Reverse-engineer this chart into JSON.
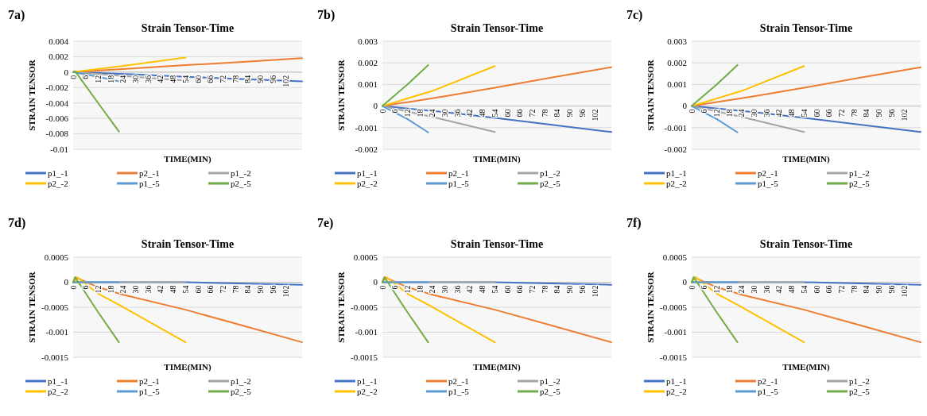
{
  "chart_data": [
    {
      "type": "line",
      "title": "Strain Tensor-Time",
      "xlabel": "TIME(MIN)",
      "ylabel": "STRAIN TENSOR",
      "annotations": [
        "7a)"
      ],
      "xlim": [
        0,
        110
      ],
      "xticks": [
        0,
        6,
        12,
        18,
        24,
        30,
        36,
        42,
        48,
        54,
        60,
        66,
        72,
        78,
        84,
        90,
        96,
        102
      ],
      "ylim": [
        -0.01,
        0.004
      ],
      "yticks": [
        -0.01,
        -0.008,
        -0.006,
        -0.004,
        -0.002,
        0,
        0.002,
        0.004
      ],
      "grid": "y",
      "legend": "bottom",
      "series": [
        {
          "name": "p1_-1",
          "color": "#4472c4",
          "x": [
            0,
            30,
            54,
            80,
            110
          ],
          "values": [
            0,
            -0.0003,
            -0.0006,
            -0.0009,
            -0.0012
          ]
        },
        {
          "name": "p2_-1",
          "color": "#ed7d31",
          "x": [
            0,
            30,
            54,
            80,
            110
          ],
          "values": [
            0,
            0.0005,
            0.0009,
            0.0013,
            0.0018
          ]
        },
        {
          "name": "p1_-2",
          "color": "#a5a5a5",
          "x": [
            0,
            24,
            54
          ],
          "values": [
            0,
            -0.0005,
            -0.0011
          ]
        },
        {
          "name": "p2_-2",
          "color": "#ffc000",
          "x": [
            0,
            24,
            54
          ],
          "values": [
            0,
            0.0008,
            0.0019
          ]
        },
        {
          "name": "p1_-5",
          "color": "#5b9bd5",
          "x": [
            0,
            12,
            22
          ],
          "values": [
            0,
            -0.0006,
            -0.0012
          ]
        },
        {
          "name": "p2_-5",
          "color": "#70ad47",
          "x": [
            0,
            1,
            12,
            22
          ],
          "values": [
            0,
            0.0001,
            -0.004,
            -0.0077
          ]
        }
      ]
    },
    {
      "type": "line",
      "title": "Strain Tensor-Time",
      "xlabel": "TIME(MIN)",
      "ylabel": "STRAIN TENSOR",
      "annotations": [
        "7b)"
      ],
      "xlim": [
        0,
        110
      ],
      "xticks": [
        0,
        6,
        12,
        18,
        24,
        30,
        36,
        42,
        48,
        54,
        60,
        66,
        72,
        78,
        84,
        90,
        96,
        102
      ],
      "ylim": [
        -0.002,
        0.003
      ],
      "yticks": [
        -0.002,
        -0.001,
        0,
        0.001,
        0.002,
        0.003
      ],
      "grid": "y",
      "legend": "bottom",
      "series": [
        {
          "name": "p1_-1",
          "color": "#4472c4",
          "x": [
            0,
            30,
            54,
            80,
            110
          ],
          "values": [
            0,
            -0.00028,
            -0.00055,
            -0.00085,
            -0.0012
          ]
        },
        {
          "name": "p2_-1",
          "color": "#ed7d31",
          "x": [
            0,
            30,
            54,
            80,
            110
          ],
          "values": [
            0,
            0.00045,
            0.00085,
            0.0013,
            0.0018
          ]
        },
        {
          "name": "p1_-2",
          "color": "#a5a5a5",
          "x": [
            0,
            24,
            54
          ],
          "values": [
            0,
            -0.0005,
            -0.0012
          ]
        },
        {
          "name": "p2_-2",
          "color": "#ffc000",
          "x": [
            0,
            24,
            54
          ],
          "values": [
            0,
            0.0007,
            0.00185
          ]
        },
        {
          "name": "p1_-5",
          "color": "#5b9bd5",
          "x": [
            0,
            12,
            22
          ],
          "values": [
            0,
            -0.0006,
            -0.00122
          ]
        },
        {
          "name": "p2_-5",
          "color": "#70ad47",
          "x": [
            0,
            12,
            22
          ],
          "values": [
            0,
            0.001,
            0.0019
          ]
        }
      ]
    },
    {
      "type": "line",
      "title": "Strain Tensor-Time",
      "xlabel": "TIME(MIN)",
      "ylabel": "STRAIN TENSOR",
      "annotations": [
        "7c)"
      ],
      "xlim": [
        0,
        110
      ],
      "xticks": [
        0,
        6,
        12,
        18,
        24,
        30,
        36,
        42,
        48,
        54,
        60,
        66,
        72,
        78,
        84,
        90,
        96,
        102
      ],
      "ylim": [
        -0.002,
        0.003
      ],
      "yticks": [
        -0.002,
        -0.001,
        0,
        0.001,
        0.002,
        0.003
      ],
      "grid": "y",
      "legend": "bottom",
      "series": [
        {
          "name": "p1_-1",
          "color": "#4472c4",
          "x": [
            0,
            30,
            54,
            80,
            110
          ],
          "values": [
            0,
            -0.00028,
            -0.00055,
            -0.00085,
            -0.0012
          ]
        },
        {
          "name": "p2_-1",
          "color": "#ed7d31",
          "x": [
            0,
            30,
            54,
            80,
            110
          ],
          "values": [
            0,
            0.00045,
            0.00085,
            0.0013,
            0.0018
          ]
        },
        {
          "name": "p1_-2",
          "color": "#a5a5a5",
          "x": [
            0,
            24,
            54
          ],
          "values": [
            0,
            -0.0005,
            -0.0012
          ]
        },
        {
          "name": "p2_-2",
          "color": "#ffc000",
          "x": [
            0,
            24,
            54
          ],
          "values": [
            0,
            0.0007,
            0.00185
          ]
        },
        {
          "name": "p1_-5",
          "color": "#5b9bd5",
          "x": [
            0,
            12,
            22
          ],
          "values": [
            0,
            -0.0006,
            -0.00122
          ]
        },
        {
          "name": "p2_-5",
          "color": "#70ad47",
          "x": [
            0,
            12,
            22
          ],
          "values": [
            0,
            0.001,
            0.0019
          ]
        }
      ]
    },
    {
      "type": "line",
      "title": "Strain Tensor-Time",
      "xlabel": "TIME(MIN)",
      "ylabel": "STRAIN TENSOR",
      "annotations": [
        "7d)"
      ],
      "xlim": [
        0,
        110
      ],
      "xticks": [
        0,
        6,
        12,
        18,
        24,
        30,
        36,
        42,
        48,
        54,
        60,
        66,
        72,
        78,
        84,
        90,
        96,
        102
      ],
      "ylim": [
        -0.0015,
        0.0005
      ],
      "yticks": [
        -0.0015,
        -0.001,
        -0.0005,
        0,
        0.0005
      ],
      "grid": "y",
      "legend": "bottom",
      "series": [
        {
          "name": "p1_-1",
          "color": "#4472c4",
          "x": [
            0,
            54,
            110
          ],
          "values": [
            0,
            0,
            -5e-05
          ]
        },
        {
          "name": "p2_-1",
          "color": "#ed7d31",
          "x": [
            0,
            1,
            12,
            24,
            54,
            80,
            110
          ],
          "values": [
            0,
            0.0001,
            -0.0001,
            -0.00025,
            -0.00055,
            -0.00085,
            -0.0012
          ]
        },
        {
          "name": "p1_-2",
          "color": "#a5a5a5",
          "x": [
            0,
            54
          ],
          "values": [
            0,
            0
          ]
        },
        {
          "name": "p2_-2",
          "color": "#ffc000",
          "x": [
            0,
            2,
            12,
            22,
            54
          ],
          "values": [
            0,
            0.0001,
            -0.00023,
            -0.00045,
            -0.0012
          ]
        },
        {
          "name": "p1_-5",
          "color": "#5b9bd5",
          "x": [
            0,
            22
          ],
          "values": [
            0,
            0
          ]
        },
        {
          "name": "p2_-5",
          "color": "#70ad47",
          "x": [
            0,
            1,
            12,
            22
          ],
          "values": [
            0,
            0.0001,
            -0.0006,
            -0.0012
          ]
        }
      ]
    },
    {
      "type": "line",
      "title": "Strain Tensor-Time",
      "xlabel": "TIME(MIN)",
      "ylabel": "STRAIN TENSOR",
      "annotations": [
        "7e)"
      ],
      "xlim": [
        0,
        110
      ],
      "xticks": [
        0,
        6,
        12,
        18,
        24,
        30,
        36,
        42,
        48,
        54,
        60,
        66,
        72,
        78,
        84,
        90,
        96,
        102
      ],
      "ylim": [
        -0.0015,
        0.0005
      ],
      "yticks": [
        -0.0015,
        -0.001,
        -0.0005,
        0,
        0.0005
      ],
      "grid": "y",
      "legend": "bottom",
      "series": [
        {
          "name": "p1_-1",
          "color": "#4472c4",
          "x": [
            0,
            54,
            110
          ],
          "values": [
            0,
            0,
            -5e-05
          ]
        },
        {
          "name": "p2_-1",
          "color": "#ed7d31",
          "x": [
            0,
            1,
            12,
            24,
            54,
            80,
            110
          ],
          "values": [
            0,
            0.0001,
            -0.0001,
            -0.00025,
            -0.00055,
            -0.00085,
            -0.0012
          ]
        },
        {
          "name": "p1_-2",
          "color": "#a5a5a5",
          "x": [
            0,
            54
          ],
          "values": [
            0,
            0
          ]
        },
        {
          "name": "p2_-2",
          "color": "#ffc000",
          "x": [
            0,
            2,
            12,
            22,
            54
          ],
          "values": [
            0,
            0.0001,
            -0.00023,
            -0.00045,
            -0.0012
          ]
        },
        {
          "name": "p1_-5",
          "color": "#5b9bd5",
          "x": [
            0,
            22
          ],
          "values": [
            0,
            0
          ]
        },
        {
          "name": "p2_-5",
          "color": "#70ad47",
          "x": [
            0,
            1,
            12,
            22
          ],
          "values": [
            0,
            0.0001,
            -0.0006,
            -0.0012
          ]
        }
      ]
    },
    {
      "type": "line",
      "title": "Strain Tensor-Time",
      "xlabel": "TIME(MIN)",
      "ylabel": "STRAIN TENSOR",
      "annotations": [
        "7f)"
      ],
      "xlim": [
        0,
        110
      ],
      "xticks": [
        0,
        6,
        12,
        18,
        24,
        30,
        36,
        42,
        48,
        54,
        60,
        66,
        72,
        78,
        84,
        90,
        96,
        102
      ],
      "ylim": [
        -0.0015,
        0.0005
      ],
      "yticks": [
        -0.0015,
        -0.001,
        -0.0005,
        0,
        0.0005
      ],
      "grid": "y",
      "legend": "bottom",
      "series": [
        {
          "name": "p1_-1",
          "color": "#4472c4",
          "x": [
            0,
            54,
            110
          ],
          "values": [
            0,
            0,
            -5e-05
          ]
        },
        {
          "name": "p2_-1",
          "color": "#ed7d31",
          "x": [
            0,
            1,
            12,
            24,
            54,
            80,
            110
          ],
          "values": [
            0,
            0.0001,
            -0.0001,
            -0.00025,
            -0.00055,
            -0.00085,
            -0.0012
          ]
        },
        {
          "name": "p1_-2",
          "color": "#a5a5a5",
          "x": [
            0,
            54
          ],
          "values": [
            0,
            0
          ]
        },
        {
          "name": "p2_-2",
          "color": "#ffc000",
          "x": [
            0,
            2,
            12,
            22,
            54
          ],
          "values": [
            0,
            0.0001,
            -0.00023,
            -0.00045,
            -0.0012
          ]
        },
        {
          "name": "p1_-5",
          "color": "#5b9bd5",
          "x": [
            0,
            22
          ],
          "values": [
            0,
            0
          ]
        },
        {
          "name": "p2_-5",
          "color": "#70ad47",
          "x": [
            0,
            1,
            12,
            22
          ],
          "values": [
            0,
            0.0001,
            -0.0006,
            -0.0012
          ]
        }
      ]
    }
  ]
}
